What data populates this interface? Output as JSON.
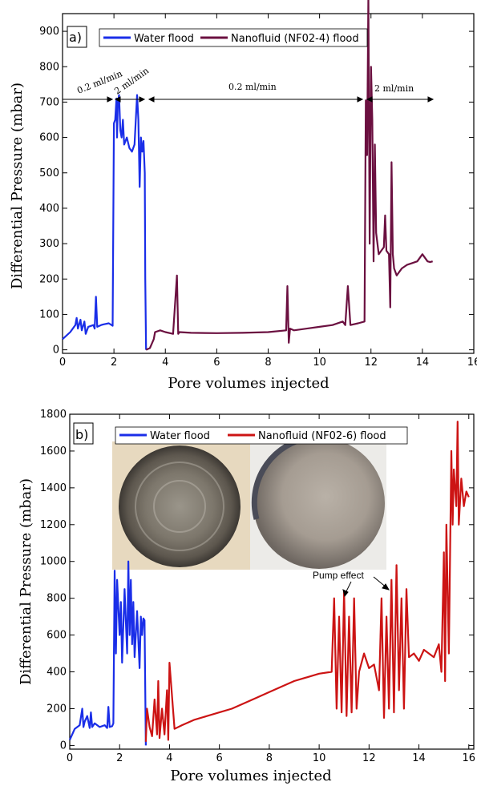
{
  "colors": {
    "water_a": "#1a2ee8",
    "nano_a": "#6b1040",
    "water_b": "#1a2ee8",
    "nano_b": "#cc1414"
  },
  "chart_data": [
    {
      "type": "line",
      "panel_label": "a)",
      "xlabel": "Pore volumes injected",
      "ylabel": "Differential Pressure (mbar)",
      "xlim": [
        0,
        16
      ],
      "ylim": [
        -10,
        950
      ],
      "xticks": [
        0,
        2,
        4,
        6,
        8,
        10,
        12,
        14,
        16
      ],
      "yticks": [
        0,
        100,
        200,
        300,
        400,
        500,
        600,
        700,
        800,
        900
      ],
      "legend_position": "top",
      "rate_labels": [
        "0.2 ml/min",
        "2 ml/min",
        "0.2 ml/min",
        "2 ml/min"
      ],
      "series": [
        {
          "name": "Water flood",
          "color_key": "water_a",
          "x": [
            0,
            0.3,
            0.5,
            0.55,
            0.6,
            0.7,
            0.75,
            0.85,
            0.9,
            1.0,
            1.2,
            1.25,
            1.3,
            1.35,
            1.5,
            1.6,
            1.8,
            1.95,
            2.0,
            2.05,
            2.1,
            2.12,
            2.15,
            2.2,
            2.25,
            2.3,
            2.35,
            2.4,
            2.5,
            2.6,
            2.7,
            2.8,
            2.9,
            2.95,
            3.0,
            3.05,
            3.1,
            3.15,
            3.2,
            3.22,
            3.25
          ],
          "y": [
            30,
            50,
            70,
            90,
            60,
            85,
            55,
            80,
            45,
            65,
            70,
            60,
            150,
            65,
            70,
            72,
            75,
            68,
            640,
            650,
            710,
            600,
            690,
            720,
            620,
            600,
            650,
            580,
            600,
            570,
            560,
            580,
            720,
            650,
            460,
            600,
            560,
            590,
            500,
            200,
            0
          ]
        },
        {
          "name": "Nanofluid (NF02-4) flood",
          "color_key": "nano_a",
          "x": [
            3.25,
            3.4,
            3.55,
            3.6,
            3.8,
            4.0,
            4.3,
            4.45,
            4.5,
            4.55,
            5.0,
            6.0,
            7.0,
            8.0,
            8.7,
            8.75,
            8.8,
            8.85,
            9.0,
            10.0,
            10.5,
            10.9,
            11.0,
            11.1,
            11.2,
            11.5,
            11.75,
            11.8,
            11.85,
            11.9,
            11.95,
            12.0,
            12.05,
            12.1,
            12.15,
            12.2,
            12.3,
            12.4,
            12.5,
            12.55,
            12.6,
            12.7,
            12.75,
            12.8,
            12.85,
            12.9,
            13.0,
            13.2,
            13.4,
            13.6,
            13.8,
            14.0,
            14.2,
            14.3,
            14.4
          ],
          "y": [
            0,
            5,
            30,
            50,
            55,
            50,
            45,
            210,
            45,
            50,
            48,
            47,
            48,
            50,
            55,
            180,
            20,
            60,
            55,
            65,
            70,
            80,
            70,
            180,
            70,
            75,
            80,
            705,
            550,
            1000,
            300,
            800,
            650,
            250,
            580,
            330,
            270,
            280,
            290,
            380,
            280,
            270,
            120,
            530,
            270,
            230,
            210,
            230,
            240,
            245,
            250,
            270,
            250,
            248,
            250
          ]
        }
      ]
    },
    {
      "type": "line",
      "panel_label": "b)",
      "xlabel": "Pore volumes injected",
      "ylabel": "Differential Pressure (mbar)",
      "xlim": [
        0,
        16.2
      ],
      "ylim": [
        -20,
        1800
      ],
      "xticks": [
        0,
        2,
        4,
        6,
        8,
        10,
        12,
        14,
        16
      ],
      "yticks": [
        0,
        200,
        400,
        600,
        800,
        1000,
        1200,
        1400,
        1600,
        1800
      ],
      "legend_position": "top",
      "annotation": "Pump effect",
      "series": [
        {
          "name": "Water flood",
          "color_key": "water_b",
          "x": [
            0,
            0.2,
            0.4,
            0.5,
            0.55,
            0.6,
            0.7,
            0.8,
            0.85,
            0.9,
            1.0,
            1.2,
            1.4,
            1.5,
            1.55,
            1.6,
            1.7,
            1.75,
            1.8,
            1.85,
            1.9,
            2.0,
            2.05,
            2.1,
            2.2,
            2.3,
            2.35,
            2.4,
            2.45,
            2.5,
            2.55,
            2.6,
            2.7,
            2.8,
            2.85,
            2.9,
            2.95,
            3.0,
            3.05
          ],
          "y": [
            30,
            90,
            110,
            200,
            100,
            130,
            160,
            95,
            180,
            100,
            120,
            100,
            110,
            95,
            210,
            100,
            105,
            120,
            950,
            500,
            900,
            600,
            780,
            450,
            850,
            500,
            1000,
            600,
            900,
            550,
            780,
            480,
            730,
            420,
            700,
            600,
            690,
            680,
            0
          ]
        },
        {
          "name": "Nanofluid (NF02-6) flood",
          "color_key": "nano_b",
          "x": [
            3.05,
            3.1,
            3.2,
            3.3,
            3.4,
            3.5,
            3.55,
            3.6,
            3.7,
            3.8,
            3.9,
            3.95,
            4.0,
            4.2,
            4.5,
            5.0,
            5.5,
            6.0,
            6.5,
            7.0,
            7.5,
            8.0,
            8.5,
            9.0,
            9.5,
            10.0,
            10.5,
            10.6,
            10.7,
            10.8,
            10.9,
            11.0,
            11.1,
            11.2,
            11.3,
            11.4,
            11.5,
            11.6,
            11.7,
            11.8,
            12.0,
            12.2,
            12.4,
            12.5,
            12.6,
            12.7,
            12.8,
            12.9,
            13.0,
            13.1,
            13.2,
            13.3,
            13.4,
            13.5,
            13.6,
            13.8,
            14.0,
            14.2,
            14.4,
            14.6,
            14.8,
            14.9,
            15.0,
            15.05,
            15.1,
            15.2,
            15.3,
            15.35,
            15.4,
            15.5,
            15.55,
            15.6,
            15.7,
            15.8,
            15.9,
            16.0
          ],
          "y": [
            20,
            200,
            100,
            50,
            250,
            60,
            350,
            40,
            200,
            60,
            300,
            30,
            450,
            90,
            110,
            140,
            160,
            180,
            200,
            230,
            260,
            290,
            320,
            350,
            370,
            390,
            400,
            800,
            200,
            700,
            180,
            840,
            160,
            700,
            180,
            800,
            200,
            400,
            450,
            500,
            420,
            440,
            300,
            800,
            150,
            700,
            200,
            900,
            180,
            980,
            300,
            800,
            200,
            850,
            480,
            500,
            460,
            520,
            500,
            480,
            550,
            400,
            1050,
            350,
            1200,
            500,
            1600,
            1200,
            1500,
            1300,
            1760,
            1200,
            1450,
            1300,
            1380,
            1350
          ]
        }
      ]
    }
  ]
}
